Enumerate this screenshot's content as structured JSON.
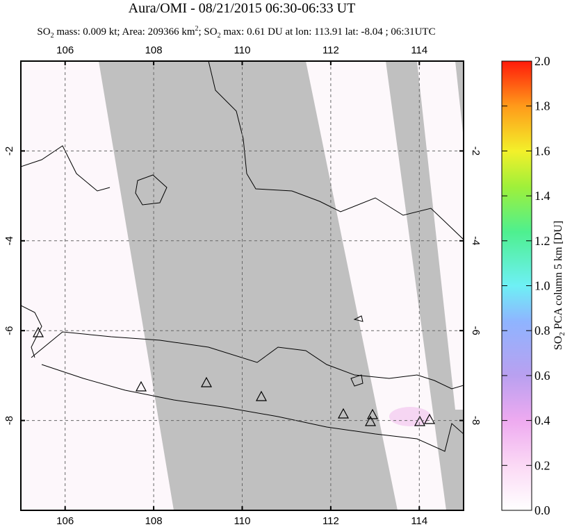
{
  "map": {
    "title": "Aura/OMI - 08/21/2015 06:30-06:33 UT",
    "subtitle": [
      "SO",
      "2",
      " mass: 0.009 kt; Area: 209366 km",
      "2",
      "; SO",
      "2",
      " max: 0.61 DU at lon: 113.91 lat: -8.04 ; 06:31UTC"
    ],
    "xlim": [
      105,
      115
    ],
    "ylim": [
      0,
      -10
    ],
    "xticks": [
      106,
      108,
      110,
      112,
      114
    ],
    "yticks": [
      -2,
      -4,
      -6,
      -8
    ],
    "colorbar": {
      "label": [
        "SO",
        "2",
        " PCA column 5 km [DU]"
      ],
      "lim": [
        0,
        2
      ],
      "ticks": [
        {
          "value": 0,
          "label": "0.0"
        },
        0.2,
        0.4,
        0.6,
        0.8,
        {
          "value": 1,
          "label": "1.0"
        },
        1.2,
        1.4,
        1.6,
        1.8,
        {
          "value": 2,
          "label": "2.0"
        }
      ]
    }
  }
}
